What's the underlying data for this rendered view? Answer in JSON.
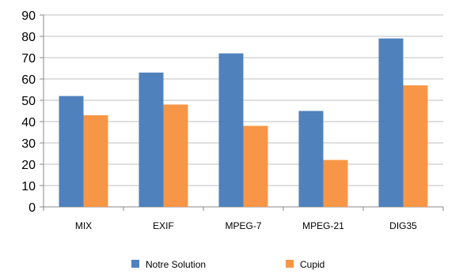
{
  "chart_data": {
    "type": "bar",
    "title": "",
    "xlabel": "",
    "ylabel": "",
    "categories": [
      "MIX",
      "EXIF",
      "MPEG-7",
      "MPEG-21",
      "DIG35"
    ],
    "series": [
      {
        "name": "Notre Solution",
        "color": "#4F81BD",
        "values": [
          52,
          63,
          72,
          45,
          79
        ]
      },
      {
        "name": "Cupid",
        "color": "#F79646",
        "values": [
          43,
          48,
          38,
          22,
          57
        ]
      }
    ],
    "ylim": [
      0,
      90
    ],
    "yticks": [
      0,
      10,
      20,
      30,
      40,
      50,
      60,
      70,
      80,
      90
    ],
    "grid": true,
    "legend_position": "bottom"
  }
}
